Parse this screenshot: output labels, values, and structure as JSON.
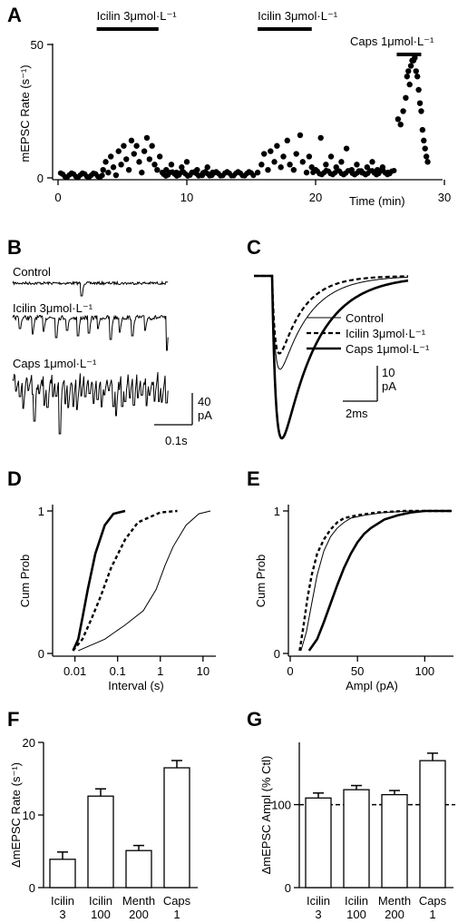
{
  "panels": {
    "A": "A",
    "B": "B",
    "C": "C",
    "D": "D",
    "E": "E",
    "F": "F",
    "G": "G"
  },
  "colors": {
    "ink": "#000000",
    "background": "#ffffff"
  },
  "chart_data": [
    {
      "panel": "A",
      "type": "scatter",
      "ylabel": "mEPSC Rate (s⁻¹)",
      "xlabel": "Time (min)",
      "xlim": [
        0,
        30
      ],
      "ylim": [
        0,
        50
      ],
      "xticks": [
        0,
        10,
        20,
        30
      ],
      "yticks": [
        0,
        50
      ],
      "bars": [
        {
          "label": "Icilin 3μmol·L⁻¹",
          "start": 3.0,
          "end": 7.8
        },
        {
          "label": "Icilin 3μmol·L⁻¹",
          "start": 15.5,
          "end": 19.7
        },
        {
          "label": "Caps 1μmol·L⁻¹",
          "start": 26.3,
          "end": 28.2
        }
      ],
      "baseline_segments": [
        [
          0.2,
          3.5,
          1
        ],
        [
          8.2,
          15.3,
          1.5
        ],
        [
          19.8,
          26.2,
          2
        ]
      ],
      "points": [
        [
          3.5,
          3
        ],
        [
          3.7,
          6
        ],
        [
          3.9,
          2
        ],
        [
          4.1,
          8
        ],
        [
          4.3,
          4
        ],
        [
          4.5,
          1
        ],
        [
          4.7,
          10
        ],
        [
          4.9,
          5
        ],
        [
          5.1,
          12
        ],
        [
          5.3,
          7
        ],
        [
          5.5,
          3
        ],
        [
          5.7,
          14
        ],
        [
          5.9,
          9
        ],
        [
          6.1,
          12
        ],
        [
          6.3,
          6
        ],
        [
          6.5,
          2
        ],
        [
          6.7,
          10
        ],
        [
          6.9,
          15
        ],
        [
          7.1,
          7
        ],
        [
          7.3,
          12
        ],
        [
          7.5,
          5
        ],
        [
          7.7,
          3
        ],
        [
          7.9,
          8
        ],
        [
          8.1,
          2
        ],
        [
          8.4,
          3
        ],
        [
          8.8,
          5
        ],
        [
          9.2,
          2
        ],
        [
          9.6,
          4
        ],
        [
          10.0,
          6
        ],
        [
          10.4,
          2
        ],
        [
          10.8,
          3
        ],
        [
          11.2,
          1
        ],
        [
          11.6,
          4
        ],
        [
          12.0,
          2
        ],
        [
          15.5,
          2
        ],
        [
          15.8,
          5
        ],
        [
          16.0,
          9
        ],
        [
          16.3,
          3
        ],
        [
          16.5,
          10
        ],
        [
          16.8,
          6
        ],
        [
          17.0,
          12
        ],
        [
          17.3,
          4
        ],
        [
          17.5,
          8
        ],
        [
          17.8,
          14
        ],
        [
          18.0,
          5
        ],
        [
          18.3,
          3
        ],
        [
          18.5,
          9
        ],
        [
          18.8,
          16
        ],
        [
          19.0,
          6
        ],
        [
          19.3,
          2
        ],
        [
          19.5,
          8
        ],
        [
          19.7,
          4
        ],
        [
          20.0,
          3
        ],
        [
          20.4,
          15
        ],
        [
          20.8,
          5
        ],
        [
          21.2,
          8
        ],
        [
          21.6,
          4
        ],
        [
          22.0,
          6
        ],
        [
          22.4,
          11
        ],
        [
          22.8,
          3
        ],
        [
          23.2,
          5
        ],
        [
          23.6,
          2
        ],
        [
          24.0,
          4
        ],
        [
          24.4,
          6
        ],
        [
          24.8,
          3
        ],
        [
          25.2,
          4
        ],
        [
          25.6,
          2
        ],
        [
          26.4,
          22
        ],
        [
          26.6,
          20
        ],
        [
          26.8,
          25
        ],
        [
          27.0,
          30
        ],
        [
          27.1,
          38
        ],
        [
          27.2,
          40
        ],
        [
          27.3,
          35
        ],
        [
          27.4,
          42
        ],
        [
          27.5,
          44
        ],
        [
          27.6,
          44
        ],
        [
          27.7,
          45
        ],
        [
          27.8,
          40
        ],
        [
          27.9,
          38
        ],
        [
          28.0,
          33
        ],
        [
          28.1,
          28
        ],
        [
          28.2,
          25
        ],
        [
          28.3,
          18
        ],
        [
          28.4,
          14
        ],
        [
          28.5,
          11
        ],
        [
          28.6,
          8
        ],
        [
          28.7,
          6
        ]
      ]
    },
    {
      "panel": "B",
      "type": "line",
      "traces": [
        "Control",
        "Icilin 3μmol·L⁻¹",
        "Caps 1μmol·L⁻¹"
      ],
      "scalebar": {
        "amplitude": "40",
        "amplitude_unit": "pA",
        "time": "0.1s"
      }
    },
    {
      "panel": "C",
      "type": "line",
      "legend": [
        "Control",
        "Icilin 3μmol·L⁻¹",
        "Caps 1μmol·L⁻¹"
      ],
      "peak_amplitude_pA": {
        "Control": 17,
        "Icilin 3μmol·L⁻¹": 15,
        "Caps 1μmol·L⁻¹": 30
      },
      "scalebar": {
        "amplitude": "10",
        "amplitude_unit": "pA",
        "time": "2ms"
      }
    },
    {
      "panel": "D",
      "type": "line",
      "xlabel": "Interval (s)",
      "ylabel": "Cum Prob",
      "xscale": "log",
      "xlim": [
        0.003,
        20
      ],
      "xticks": [
        "0.01",
        "0.1",
        "1",
        "10"
      ],
      "yticks": [
        "0",
        "1"
      ],
      "series": [
        {
          "style": "thick",
          "x": [
            0.009,
            0.012,
            0.015,
            0.02,
            0.03,
            0.05,
            0.08,
            0.15
          ],
          "y": [
            0.02,
            0.1,
            0.25,
            0.45,
            0.7,
            0.9,
            0.98,
            1.0
          ]
        },
        {
          "style": "dashed",
          "x": [
            0.009,
            0.015,
            0.025,
            0.04,
            0.07,
            0.15,
            0.3,
            1.0,
            2.5
          ],
          "y": [
            0.02,
            0.1,
            0.25,
            0.4,
            0.6,
            0.8,
            0.92,
            0.99,
            1.0
          ]
        },
        {
          "style": "thin",
          "x": [
            0.012,
            0.05,
            0.15,
            0.4,
            0.8,
            1.3,
            2.0,
            4.0,
            8.0,
            15.0
          ],
          "y": [
            0.02,
            0.1,
            0.2,
            0.3,
            0.45,
            0.62,
            0.75,
            0.9,
            0.98,
            1.0
          ]
        }
      ]
    },
    {
      "panel": "E",
      "type": "line",
      "xlabel": "Ampl (pA)",
      "ylabel": "Cum Prob",
      "xlim": [
        0,
        120
      ],
      "xticks": [
        "0",
        "50",
        "100"
      ],
      "yticks": [
        "0",
        "1"
      ],
      "series": [
        {
          "style": "thin",
          "x": [
            8,
            12,
            16,
            20,
            25,
            30,
            35,
            40,
            45,
            55,
            70,
            90,
            120
          ],
          "y": [
            0.02,
            0.15,
            0.35,
            0.55,
            0.72,
            0.82,
            0.88,
            0.92,
            0.95,
            0.97,
            0.99,
            1.0,
            1.0
          ]
        },
        {
          "style": "dashed",
          "x": [
            7,
            10,
            13,
            16,
            20,
            25,
            30,
            35,
            40,
            50,
            65,
            85,
            120
          ],
          "y": [
            0.02,
            0.2,
            0.4,
            0.55,
            0.7,
            0.8,
            0.87,
            0.92,
            0.95,
            0.97,
            0.99,
            1.0,
            1.0
          ]
        },
        {
          "style": "thick",
          "x": [
            14,
            20,
            25,
            30,
            35,
            40,
            45,
            50,
            55,
            60,
            70,
            80,
            90,
            100,
            120
          ],
          "y": [
            0.02,
            0.1,
            0.22,
            0.35,
            0.48,
            0.6,
            0.7,
            0.78,
            0.84,
            0.88,
            0.94,
            0.97,
            0.99,
            1.0,
            1.0
          ]
        }
      ]
    },
    {
      "panel": "F",
      "type": "bar",
      "ylabel": "ΔmEPSC Rate (s⁻¹)",
      "ylim": [
        0,
        20
      ],
      "yticks": [
        "0",
        "10",
        "20"
      ],
      "categories": [
        [
          "Icilin",
          "3"
        ],
        [
          "Icilin",
          "100"
        ],
        [
          "Menth",
          "200"
        ],
        [
          "Caps",
          "1"
        ]
      ],
      "values": [
        3.9,
        12.6,
        5.1,
        16.5
      ],
      "errors": [
        1.0,
        1.0,
        0.7,
        1.0
      ]
    },
    {
      "panel": "G",
      "type": "bar",
      "ylabel": "ΔmEPSC Ampl (% Ctl)",
      "ylim": [
        0,
        175
      ],
      "yticks": [
        "0",
        "100"
      ],
      "reference_line": 100,
      "categories": [
        [
          "Icilin",
          "3"
        ],
        [
          "Icilin",
          "100"
        ],
        [
          "Menth",
          "200"
        ],
        [
          "Caps",
          "1"
        ]
      ],
      "values": [
        108,
        118,
        112,
        153
      ],
      "errors": [
        6,
        5,
        5,
        9
      ]
    }
  ]
}
